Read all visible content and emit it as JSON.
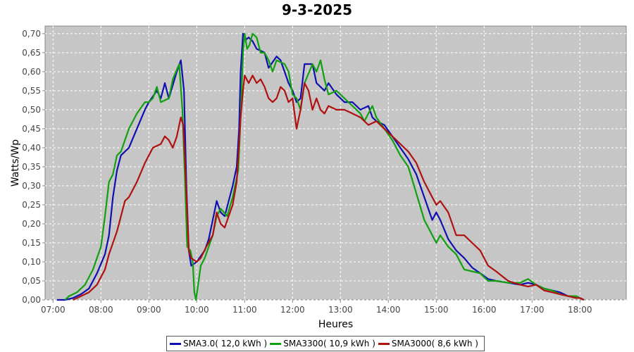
{
  "chart_data": {
    "type": "line",
    "title": "9-3-2025",
    "xlabel": "Heures",
    "ylabel": "Watts/Wp",
    "x_unit": "hour-of-day",
    "xlim": [
      "06:50",
      "18:58"
    ],
    "ylim": [
      0,
      0.72
    ],
    "x_ticks": [
      "07:00",
      "08:00",
      "09:00",
      "10:00",
      "11:00",
      "12:00",
      "13:00",
      "14:00",
      "15:00",
      "16:00",
      "17:00",
      "18:00"
    ],
    "y_ticks": [
      "0,00",
      "0,05",
      "0,10",
      "0,15",
      "0,20",
      "0,25",
      "0,30",
      "0,35",
      "0,40",
      "0,45",
      "0,50",
      "0,55",
      "0,60",
      "0,65",
      "0,70"
    ],
    "grid": true,
    "legend_position": "bottom",
    "series": [
      {
        "name": "SMA3.0( 12,0 kWh )",
        "color": "#1010b0",
        "points": [
          [
            "07:05",
            0.0
          ],
          [
            "07:15",
            0.0
          ],
          [
            "07:25",
            0.005
          ],
          [
            "07:35",
            0.015
          ],
          [
            "07:45",
            0.03
          ],
          [
            "07:55",
            0.07
          ],
          [
            "08:05",
            0.12
          ],
          [
            "08:10",
            0.17
          ],
          [
            "08:15",
            0.27
          ],
          [
            "08:20",
            0.34
          ],
          [
            "08:25",
            0.38
          ],
          [
            "08:35",
            0.4
          ],
          [
            "08:45",
            0.45
          ],
          [
            "08:55",
            0.5
          ],
          [
            "09:00",
            0.52
          ],
          [
            "09:10",
            0.55
          ],
          [
            "09:15",
            0.53
          ],
          [
            "09:20",
            0.57
          ],
          [
            "09:25",
            0.53
          ],
          [
            "09:35",
            0.6
          ],
          [
            "09:40",
            0.63
          ],
          [
            "09:44",
            0.55
          ],
          [
            "09:47",
            0.3
          ],
          [
            "09:50",
            0.13
          ],
          [
            "09:53",
            0.09
          ],
          [
            "10:00",
            0.1
          ],
          [
            "10:10",
            0.13
          ],
          [
            "10:15",
            0.16
          ],
          [
            "10:20",
            0.21
          ],
          [
            "10:25",
            0.26
          ],
          [
            "10:30",
            0.23
          ],
          [
            "10:35",
            0.22
          ],
          [
            "10:45",
            0.3
          ],
          [
            "10:50",
            0.35
          ],
          [
            "10:53",
            0.45
          ],
          [
            "10:55",
            0.6
          ],
          [
            "10:58",
            0.7
          ],
          [
            "11:02",
            0.685
          ],
          [
            "11:05",
            0.69
          ],
          [
            "11:10",
            0.68
          ],
          [
            "11:15",
            0.66
          ],
          [
            "11:25",
            0.65
          ],
          [
            "11:30",
            0.61
          ],
          [
            "11:40",
            0.64
          ],
          [
            "11:45",
            0.63
          ],
          [
            "11:55",
            0.57
          ],
          [
            "12:00",
            0.55
          ],
          [
            "12:05",
            0.52
          ],
          [
            "12:10",
            0.53
          ],
          [
            "12:15",
            0.62
          ],
          [
            "12:25",
            0.62
          ],
          [
            "12:30",
            0.57
          ],
          [
            "12:35",
            0.56
          ],
          [
            "12:40",
            0.55
          ],
          [
            "12:45",
            0.57
          ],
          [
            "12:55",
            0.54
          ],
          [
            "13:05",
            0.52
          ],
          [
            "13:15",
            0.52
          ],
          [
            "13:25",
            0.5
          ],
          [
            "13:35",
            0.51
          ],
          [
            "13:40",
            0.48
          ],
          [
            "13:45",
            0.47
          ],
          [
            "13:55",
            0.46
          ],
          [
            "14:05",
            0.43
          ],
          [
            "14:15",
            0.4
          ],
          [
            "14:25",
            0.37
          ],
          [
            "14:35",
            0.33
          ],
          [
            "14:45",
            0.27
          ],
          [
            "14:55",
            0.21
          ],
          [
            "15:00",
            0.23
          ],
          [
            "15:05",
            0.21
          ],
          [
            "15:15",
            0.16
          ],
          [
            "15:25",
            0.13
          ],
          [
            "15:35",
            0.11
          ],
          [
            "15:45",
            0.085
          ],
          [
            "15:55",
            0.07
          ],
          [
            "16:05",
            0.055
          ],
          [
            "16:15",
            0.05
          ],
          [
            "16:30",
            0.045
          ],
          [
            "16:45",
            0.04
          ],
          [
            "16:55",
            0.045
          ],
          [
            "17:05",
            0.04
          ],
          [
            "17:15",
            0.03
          ],
          [
            "17:25",
            0.025
          ],
          [
            "17:35",
            0.02
          ],
          [
            "17:45",
            0.01
          ],
          [
            "17:55",
            0.01
          ],
          [
            "18:00",
            0.005
          ],
          [
            "18:05",
            0.0
          ]
        ]
      },
      {
        "name": "SMA3300( 10,9 kWh )",
        "color": "#10a010",
        "points": [
          [
            "07:15",
            0.0
          ],
          [
            "07:20",
            0.01
          ],
          [
            "07:30",
            0.02
          ],
          [
            "07:40",
            0.04
          ],
          [
            "07:50",
            0.08
          ],
          [
            "08:00",
            0.14
          ],
          [
            "08:05",
            0.22
          ],
          [
            "08:10",
            0.31
          ],
          [
            "08:15",
            0.33
          ],
          [
            "08:20",
            0.38
          ],
          [
            "08:25",
            0.39
          ],
          [
            "08:35",
            0.45
          ],
          [
            "08:45",
            0.49
          ],
          [
            "08:55",
            0.52
          ],
          [
            "09:00",
            0.52
          ],
          [
            "09:05",
            0.53
          ],
          [
            "09:10",
            0.56
          ],
          [
            "09:15",
            0.52
          ],
          [
            "09:25",
            0.53
          ],
          [
            "09:30",
            0.58
          ],
          [
            "09:38",
            0.62
          ],
          [
            "09:42",
            0.5
          ],
          [
            "09:45",
            0.33
          ],
          [
            "09:48",
            0.14
          ],
          [
            "09:52",
            0.13
          ],
          [
            "09:55",
            0.1
          ],
          [
            "09:57",
            0.02
          ],
          [
            "09:59",
            0.0
          ],
          [
            "10:05",
            0.09
          ],
          [
            "10:10",
            0.11
          ],
          [
            "10:15",
            0.14
          ],
          [
            "10:20",
            0.17
          ],
          [
            "10:25",
            0.22
          ],
          [
            "10:30",
            0.24
          ],
          [
            "10:38",
            0.22
          ],
          [
            "10:45",
            0.27
          ],
          [
            "10:52",
            0.34
          ],
          [
            "10:55",
            0.48
          ],
          [
            "10:58",
            0.65
          ],
          [
            "11:00",
            0.7
          ],
          [
            "11:03",
            0.66
          ],
          [
            "11:06",
            0.67
          ],
          [
            "11:10",
            0.7
          ],
          [
            "11:15",
            0.69
          ],
          [
            "11:20",
            0.65
          ],
          [
            "11:25",
            0.65
          ],
          [
            "11:30",
            0.63
          ],
          [
            "11:35",
            0.6
          ],
          [
            "11:40",
            0.63
          ],
          [
            "11:50",
            0.62
          ],
          [
            "11:55",
            0.6
          ],
          [
            "12:00",
            0.54
          ],
          [
            "12:05",
            0.53
          ],
          [
            "12:10",
            0.5
          ],
          [
            "12:15",
            0.57
          ],
          [
            "12:25",
            0.62
          ],
          [
            "12:30",
            0.6
          ],
          [
            "12:35",
            0.63
          ],
          [
            "12:40",
            0.58
          ],
          [
            "12:45",
            0.54
          ],
          [
            "12:55",
            0.55
          ],
          [
            "13:05",
            0.53
          ],
          [
            "13:15",
            0.51
          ],
          [
            "13:25",
            0.49
          ],
          [
            "13:30",
            0.47
          ],
          [
            "13:40",
            0.51
          ],
          [
            "13:45",
            0.48
          ],
          [
            "13:55",
            0.45
          ],
          [
            "14:05",
            0.42
          ],
          [
            "14:15",
            0.38
          ],
          [
            "14:25",
            0.35
          ],
          [
            "14:35",
            0.28
          ],
          [
            "14:45",
            0.21
          ],
          [
            "14:50",
            0.19
          ],
          [
            "15:00",
            0.15
          ],
          [
            "15:05",
            0.17
          ],
          [
            "15:15",
            0.14
          ],
          [
            "15:25",
            0.12
          ],
          [
            "15:35",
            0.08
          ],
          [
            "15:45",
            0.075
          ],
          [
            "15:55",
            0.07
          ],
          [
            "16:05",
            0.05
          ],
          [
            "16:15",
            0.05
          ],
          [
            "16:30",
            0.045
          ],
          [
            "16:45",
            0.045
          ],
          [
            "16:55",
            0.055
          ],
          [
            "17:05",
            0.04
          ],
          [
            "17:15",
            0.03
          ],
          [
            "17:25",
            0.025
          ],
          [
            "17:35",
            0.015
          ],
          [
            "17:45",
            0.01
          ],
          [
            "17:55",
            0.01
          ],
          [
            "18:00",
            0.005
          ],
          [
            "18:05",
            0.0
          ]
        ]
      },
      {
        "name": "SMA3000( 8,6 kWh )",
        "color": "#b01010",
        "points": [
          [
            "07:25",
            0.0
          ],
          [
            "07:35",
            0.01
          ],
          [
            "07:45",
            0.02
          ],
          [
            "07:55",
            0.04
          ],
          [
            "08:00",
            0.06
          ],
          [
            "08:05",
            0.08
          ],
          [
            "08:10",
            0.12
          ],
          [
            "08:20",
            0.18
          ],
          [
            "08:25",
            0.22
          ],
          [
            "08:30",
            0.26
          ],
          [
            "08:35",
            0.27
          ],
          [
            "08:45",
            0.31
          ],
          [
            "08:55",
            0.36
          ],
          [
            "09:05",
            0.4
          ],
          [
            "09:15",
            0.41
          ],
          [
            "09:20",
            0.43
          ],
          [
            "09:25",
            0.42
          ],
          [
            "09:30",
            0.4
          ],
          [
            "09:35",
            0.43
          ],
          [
            "09:40",
            0.48
          ],
          [
            "09:43",
            0.46
          ],
          [
            "09:45",
            0.38
          ],
          [
            "09:48",
            0.23
          ],
          [
            "09:50",
            0.13
          ],
          [
            "09:53",
            0.11
          ],
          [
            "10:00",
            0.1
          ],
          [
            "10:05",
            0.11
          ],
          [
            "10:12",
            0.14
          ],
          [
            "10:20",
            0.17
          ],
          [
            "10:25",
            0.23
          ],
          [
            "10:30",
            0.2
          ],
          [
            "10:35",
            0.19
          ],
          [
            "10:40",
            0.22
          ],
          [
            "10:45",
            0.25
          ],
          [
            "10:50",
            0.31
          ],
          [
            "10:55",
            0.48
          ],
          [
            "10:58",
            0.55
          ],
          [
            "11:00",
            0.59
          ],
          [
            "11:05",
            0.57
          ],
          [
            "11:10",
            0.59
          ],
          [
            "11:15",
            0.57
          ],
          [
            "11:20",
            0.58
          ],
          [
            "11:25",
            0.56
          ],
          [
            "11:30",
            0.53
          ],
          [
            "11:35",
            0.52
          ],
          [
            "11:40",
            0.53
          ],
          [
            "11:45",
            0.56
          ],
          [
            "11:50",
            0.55
          ],
          [
            "11:55",
            0.52
          ],
          [
            "12:00",
            0.53
          ],
          [
            "12:05",
            0.45
          ],
          [
            "12:10",
            0.5
          ],
          [
            "12:15",
            0.57
          ],
          [
            "12:20",
            0.55
          ],
          [
            "12:25",
            0.5
          ],
          [
            "12:30",
            0.53
          ],
          [
            "12:35",
            0.5
          ],
          [
            "12:40",
            0.49
          ],
          [
            "12:45",
            0.51
          ],
          [
            "12:55",
            0.5
          ],
          [
            "13:05",
            0.5
          ],
          [
            "13:15",
            0.49
          ],
          [
            "13:25",
            0.48
          ],
          [
            "13:35",
            0.46
          ],
          [
            "13:45",
            0.47
          ],
          [
            "13:55",
            0.45
          ],
          [
            "14:05",
            0.43
          ],
          [
            "14:15",
            0.41
          ],
          [
            "14:25",
            0.39
          ],
          [
            "14:35",
            0.36
          ],
          [
            "14:45",
            0.31
          ],
          [
            "14:55",
            0.27
          ],
          [
            "15:00",
            0.25
          ],
          [
            "15:05",
            0.26
          ],
          [
            "15:15",
            0.23
          ],
          [
            "15:25",
            0.17
          ],
          [
            "15:35",
            0.17
          ],
          [
            "15:45",
            0.15
          ],
          [
            "15:55",
            0.13
          ],
          [
            "16:05",
            0.09
          ],
          [
            "16:15",
            0.075
          ],
          [
            "16:30",
            0.05
          ],
          [
            "16:45",
            0.04
          ],
          [
            "16:55",
            0.035
          ],
          [
            "17:05",
            0.04
          ],
          [
            "17:15",
            0.025
          ],
          [
            "17:25",
            0.02
          ],
          [
            "17:35",
            0.015
          ],
          [
            "17:45",
            0.01
          ],
          [
            "17:55",
            0.005
          ],
          [
            "18:00",
            0.005
          ],
          [
            "18:05",
            0.0
          ]
        ]
      }
    ]
  }
}
